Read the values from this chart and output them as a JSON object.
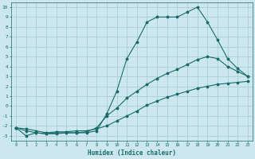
{
  "bg_color": "#cce8ee",
  "grid_color": "#aacdd6",
  "line_color": "#1a6b6b",
  "xlabel": "Humidex (Indice chaleur)",
  "xlim": [
    -0.5,
    23.5
  ],
  "ylim": [
    -3.5,
    10.5
  ],
  "xticks": [
    0,
    1,
    2,
    3,
    4,
    5,
    6,
    7,
    8,
    9,
    10,
    11,
    12,
    13,
    14,
    15,
    16,
    17,
    18,
    19,
    20,
    21,
    22,
    23
  ],
  "yticks": [
    -3,
    -2,
    -1,
    0,
    1,
    2,
    3,
    4,
    5,
    6,
    7,
    8,
    9,
    10
  ],
  "curve1_x": [
    0,
    1,
    2,
    3,
    4,
    5,
    6,
    7,
    8,
    9,
    10,
    11,
    12,
    13,
    14,
    15,
    16,
    17,
    18,
    19,
    20,
    21,
    22,
    23
  ],
  "curve1_y": [
    -2.2,
    -3.0,
    -2.7,
    -2.8,
    -2.8,
    -2.7,
    -2.7,
    -2.7,
    -2.5,
    -0.8,
    1.5,
    4.8,
    6.5,
    8.5,
    9.0,
    9.0,
    9.0,
    9.5,
    10.0,
    8.5,
    6.7,
    4.8,
    3.8,
    3.0
  ],
  "curve2_x": [
    0,
    1,
    2,
    3,
    4,
    5,
    6,
    7,
    8,
    9,
    10,
    11,
    12,
    13,
    14,
    15,
    16,
    17,
    18,
    19,
    20,
    21,
    22,
    23
  ],
  "curve2_y": [
    -2.2,
    -2.5,
    -2.7,
    -2.8,
    -2.7,
    -2.7,
    -2.7,
    -2.6,
    -2.2,
    -1.0,
    -0.2,
    0.8,
    1.5,
    2.2,
    2.8,
    3.3,
    3.7,
    4.2,
    4.7,
    5.0,
    4.8,
    4.0,
    3.5,
    3.0
  ],
  "curve3_x": [
    0,
    1,
    2,
    3,
    4,
    5,
    6,
    7,
    8,
    9,
    10,
    11,
    12,
    13,
    14,
    15,
    16,
    17,
    18,
    19,
    20,
    21,
    22,
    23
  ],
  "curve3_y": [
    -2.2,
    -2.3,
    -2.5,
    -2.7,
    -2.6,
    -2.6,
    -2.5,
    -2.5,
    -2.3,
    -2.0,
    -1.5,
    -1.0,
    -0.5,
    0.1,
    0.5,
    0.9,
    1.2,
    1.5,
    1.8,
    2.0,
    2.2,
    2.3,
    2.4,
    2.5
  ]
}
